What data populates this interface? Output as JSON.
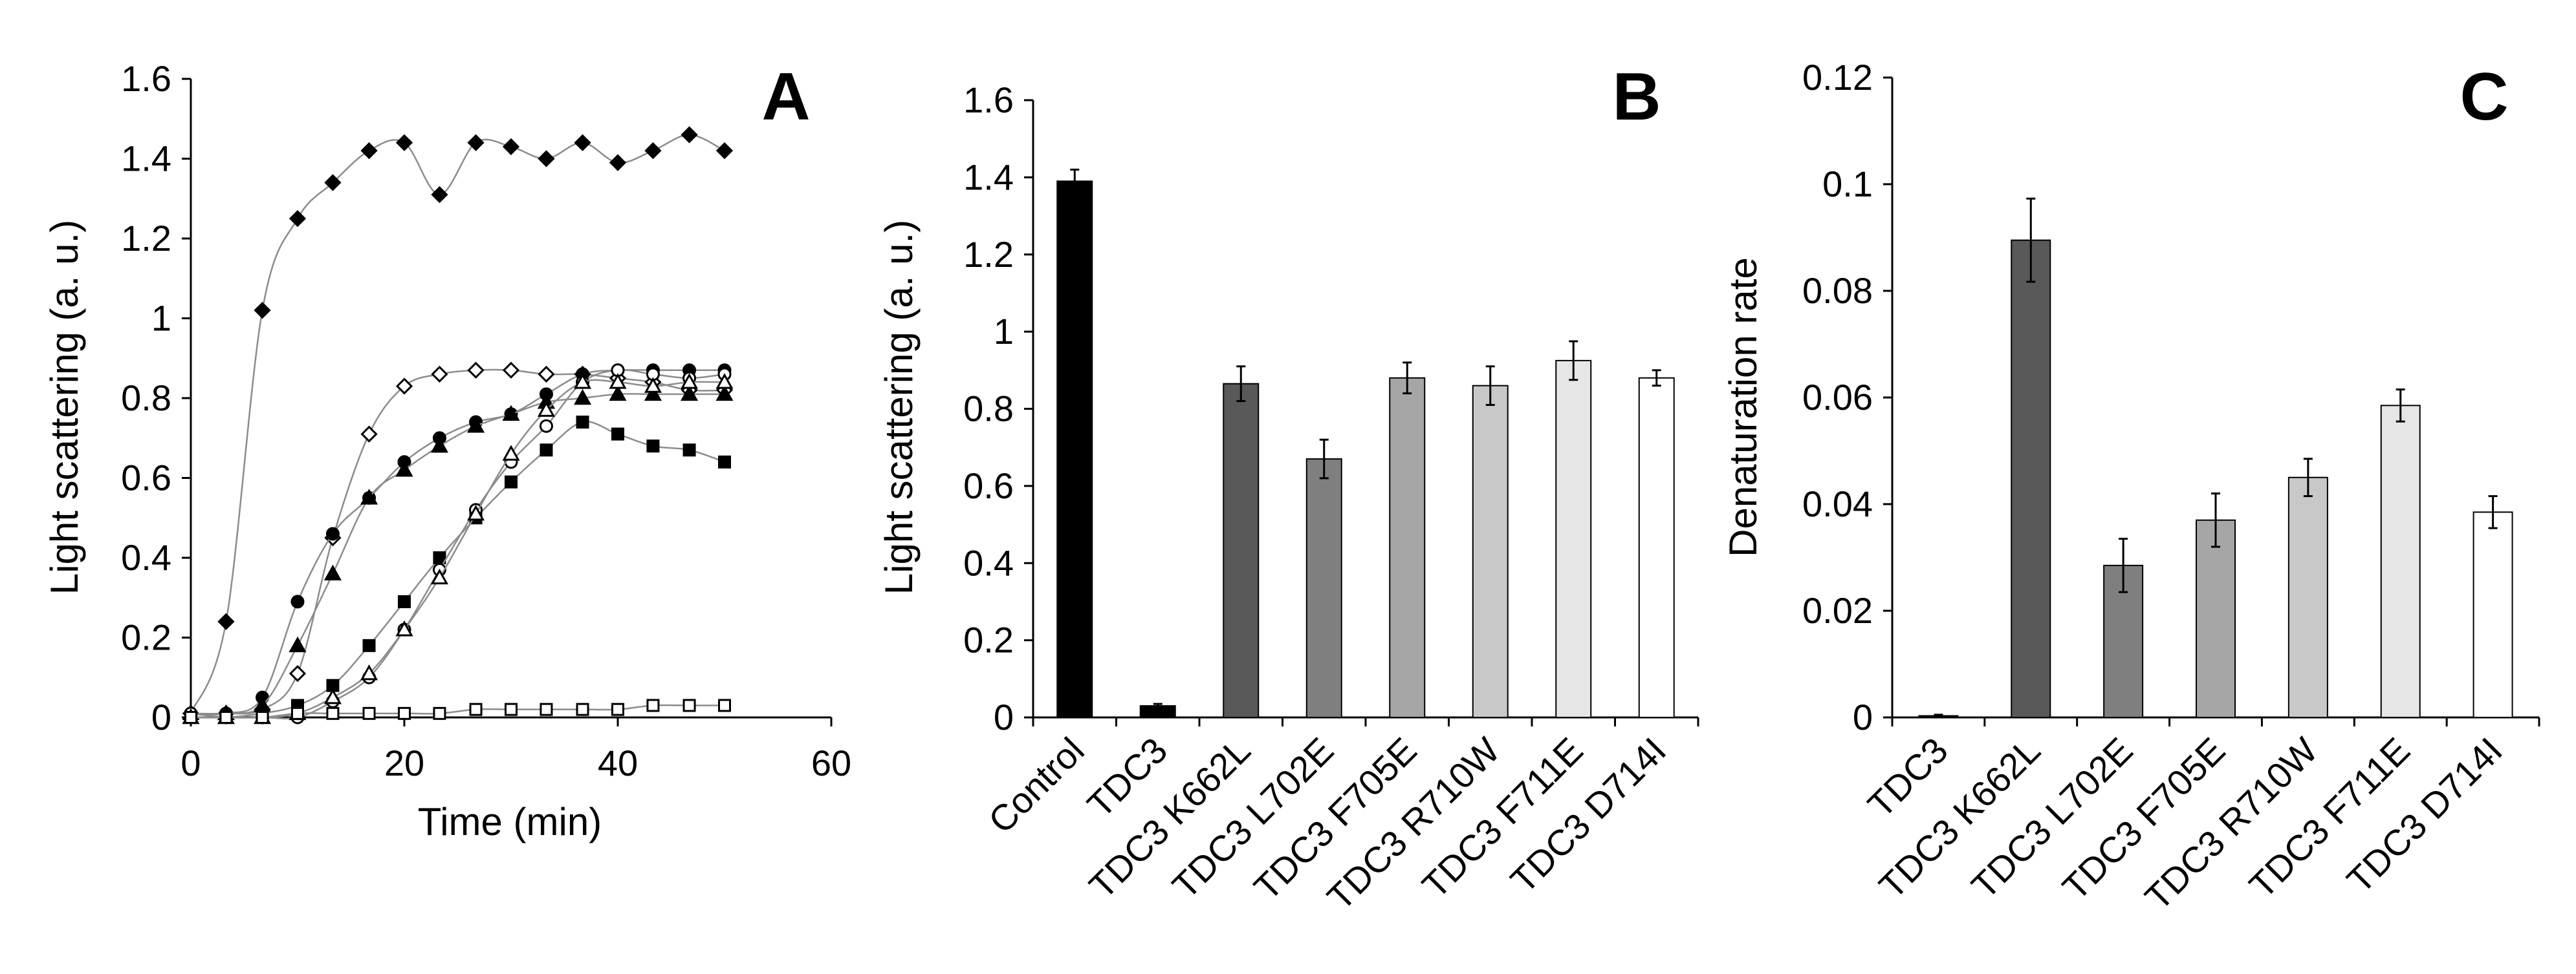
{
  "colors": {
    "line": "#8c8c8c",
    "axis": "#000000",
    "bars": [
      "#000000",
      "#262626",
      "#595959",
      "#7f7f7f",
      "#a6a6a6",
      "#c8c8c8",
      "#e6e6e6",
      "#ffffff"
    ]
  },
  "chart_data": [
    {
      "id": "A",
      "type": "line",
      "panel_label": "A",
      "xlabel": "Time (min)",
      "ylabel": "Light scattering (a. u.)",
      "xlim": [
        0,
        60
      ],
      "ylim": [
        0,
        1.6
      ],
      "xticks": [
        0,
        20,
        40,
        60
      ],
      "yticks": [
        0,
        0.2,
        0.4,
        0.6,
        0.8,
        1,
        1.2,
        1.4,
        1.6
      ],
      "xtick_labels": [
        "0",
        "20",
        "40",
        "60"
      ],
      "ytick_labels": [
        "0",
        "0.2",
        "0.4",
        "0.6",
        "0.8",
        "1",
        "1.2",
        "1.4",
        "1.6"
      ],
      "series": [
        {
          "name": "Control",
          "marker": "diamond-filled",
          "x": [
            0,
            3.3,
            6.7,
            10,
            13.3,
            16.7,
            20,
            23.3,
            26.7,
            30,
            33.3,
            36.7,
            40,
            43.3,
            46.7,
            50
          ],
          "y": [
            0.01,
            0.24,
            1.02,
            1.25,
            1.34,
            1.42,
            1.44,
            1.31,
            1.44,
            1.43,
            1.4,
            1.44,
            1.39,
            1.42,
            1.46,
            1.42
          ]
        },
        {
          "name": "TDC3 F711E",
          "marker": "diamond-open",
          "x": [
            0,
            3.3,
            6.7,
            10,
            13.3,
            16.7,
            20,
            23.3,
            26.7,
            30,
            33.3,
            36.7,
            40,
            43.3,
            46.7,
            50
          ],
          "y": [
            0.01,
            0.01,
            0.02,
            0.11,
            0.45,
            0.71,
            0.83,
            0.86,
            0.87,
            0.87,
            0.86,
            0.86,
            0.85,
            0.84,
            0.82,
            0.82
          ]
        },
        {
          "name": "TDC3 F705E",
          "marker": "circle-filled",
          "x": [
            0,
            3.3,
            6.7,
            10,
            13.3,
            16.7,
            20,
            23.3,
            26.7,
            30,
            33.3,
            36.7,
            40,
            43.3,
            46.7,
            50
          ],
          "y": [
            0.01,
            0.01,
            0.05,
            0.29,
            0.46,
            0.55,
            0.64,
            0.7,
            0.74,
            0.76,
            0.81,
            0.86,
            0.87,
            0.87,
            0.87,
            0.87
          ]
        },
        {
          "name": "TDC3 R710W",
          "marker": "triangle-filled",
          "x": [
            0,
            3.3,
            6.7,
            10,
            13.3,
            16.7,
            20,
            23.3,
            26.7,
            30,
            33.3,
            36.7,
            40,
            43.3,
            46.7,
            50
          ],
          "y": [
            0.01,
            0.01,
            0.03,
            0.18,
            0.36,
            0.55,
            0.62,
            0.68,
            0.73,
            0.76,
            0.79,
            0.8,
            0.81,
            0.81,
            0.81,
            0.81
          ]
        },
        {
          "name": "TDC3 L702E",
          "marker": "square-filled",
          "x": [
            0,
            3.3,
            6.7,
            10,
            13.3,
            16.7,
            20,
            23.3,
            26.7,
            30,
            33.3,
            36.7,
            40,
            43.3,
            46.7,
            50
          ],
          "y": [
            0.0,
            0.0,
            0.01,
            0.03,
            0.08,
            0.18,
            0.29,
            0.4,
            0.5,
            0.59,
            0.67,
            0.74,
            0.71,
            0.68,
            0.67,
            0.64
          ]
        },
        {
          "name": "TDC3 D714I",
          "marker": "circle-open",
          "x": [
            0,
            3.3,
            6.7,
            10,
            13.3,
            16.7,
            20,
            23.3,
            26.7,
            30,
            33.3,
            36.7,
            40,
            43.3,
            46.7,
            50
          ],
          "y": [
            0.01,
            0.0,
            0.0,
            0.0,
            0.04,
            0.1,
            0.22,
            0.37,
            0.52,
            0.64,
            0.73,
            0.84,
            0.87,
            0.86,
            0.85,
            0.86
          ]
        },
        {
          "name": "TDC3 K662L",
          "marker": "triangle-open",
          "x": [
            0,
            3.3,
            6.7,
            10,
            13.3,
            16.7,
            20,
            23.3,
            26.7,
            30,
            33.3,
            36.7,
            40,
            43.3,
            46.7,
            50
          ],
          "y": [
            0.0,
            0.0,
            0.0,
            0.01,
            0.05,
            0.11,
            0.22,
            0.35,
            0.51,
            0.66,
            0.77,
            0.84,
            0.84,
            0.83,
            0.84,
            0.84
          ]
        },
        {
          "name": "TDC3",
          "marker": "square-open",
          "x": [
            0,
            3.3,
            6.7,
            10,
            13.3,
            16.7,
            20,
            23.3,
            26.7,
            30,
            33.3,
            36.7,
            40,
            43.3,
            46.7,
            50
          ],
          "y": [
            0.0,
            0.0,
            0.0,
            0.01,
            0.01,
            0.01,
            0.01,
            0.01,
            0.02,
            0.02,
            0.02,
            0.02,
            0.02,
            0.03,
            0.03,
            0.03
          ]
        }
      ]
    },
    {
      "id": "B",
      "type": "bar",
      "panel_label": "B",
      "ylabel": "Light scattering (a. u.)",
      "ylim": [
        0,
        1.6
      ],
      "yticks": [
        0,
        0.2,
        0.4,
        0.6,
        0.8,
        1,
        1.2,
        1.4,
        1.6
      ],
      "ytick_labels": [
        "0",
        "0.2",
        "0.4",
        "0.6",
        "0.8",
        "1",
        "1.2",
        "1.4",
        "1.6"
      ],
      "categories": [
        "Control",
        "TDC3",
        "TDC3 K662L",
        "TDC3 L702E",
        "TDC3 F705E",
        "TDC3 R710W",
        "TDC3 F711E",
        "TDC3 D714I"
      ],
      "values": [
        1.39,
        0.03,
        0.865,
        0.67,
        0.88,
        0.86,
        0.925,
        0.88
      ],
      "errors": [
        0.03,
        0.005,
        0.045,
        0.05,
        0.04,
        0.05,
        0.05,
        0.02
      ],
      "bar_colors": [
        "#000000",
        "#000000",
        "#595959",
        "#7f7f7f",
        "#a6a6a6",
        "#c8c8c8",
        "#e6e6e6",
        "#ffffff"
      ]
    },
    {
      "id": "C",
      "type": "bar",
      "panel_label": "C",
      "ylabel": "Denaturation rate",
      "ylim": [
        0,
        0.12
      ],
      "yticks": [
        0,
        0.02,
        0.04,
        0.06,
        0.08,
        0.1,
        0.12
      ],
      "ytick_labels": [
        "0",
        "0.02",
        "0.04",
        "0.06",
        "0.08",
        "0.1",
        "0.12"
      ],
      "categories": [
        "TDC3",
        "TDC3 K662L",
        "TDC3 L702E",
        "TDC3 F705E",
        "TDC3 R710W",
        "TDC3 F711E",
        "TDC3 D714I"
      ],
      "values": [
        0.0003,
        0.0895,
        0.0285,
        0.037,
        0.045,
        0.0585,
        0.0385
      ],
      "errors": [
        0.0002,
        0.0078,
        0.005,
        0.005,
        0.0035,
        0.003,
        0.003
      ],
      "bar_colors": [
        "#000000",
        "#595959",
        "#7f7f7f",
        "#a6a6a6",
        "#c8c8c8",
        "#e6e6e6",
        "#ffffff"
      ]
    }
  ]
}
